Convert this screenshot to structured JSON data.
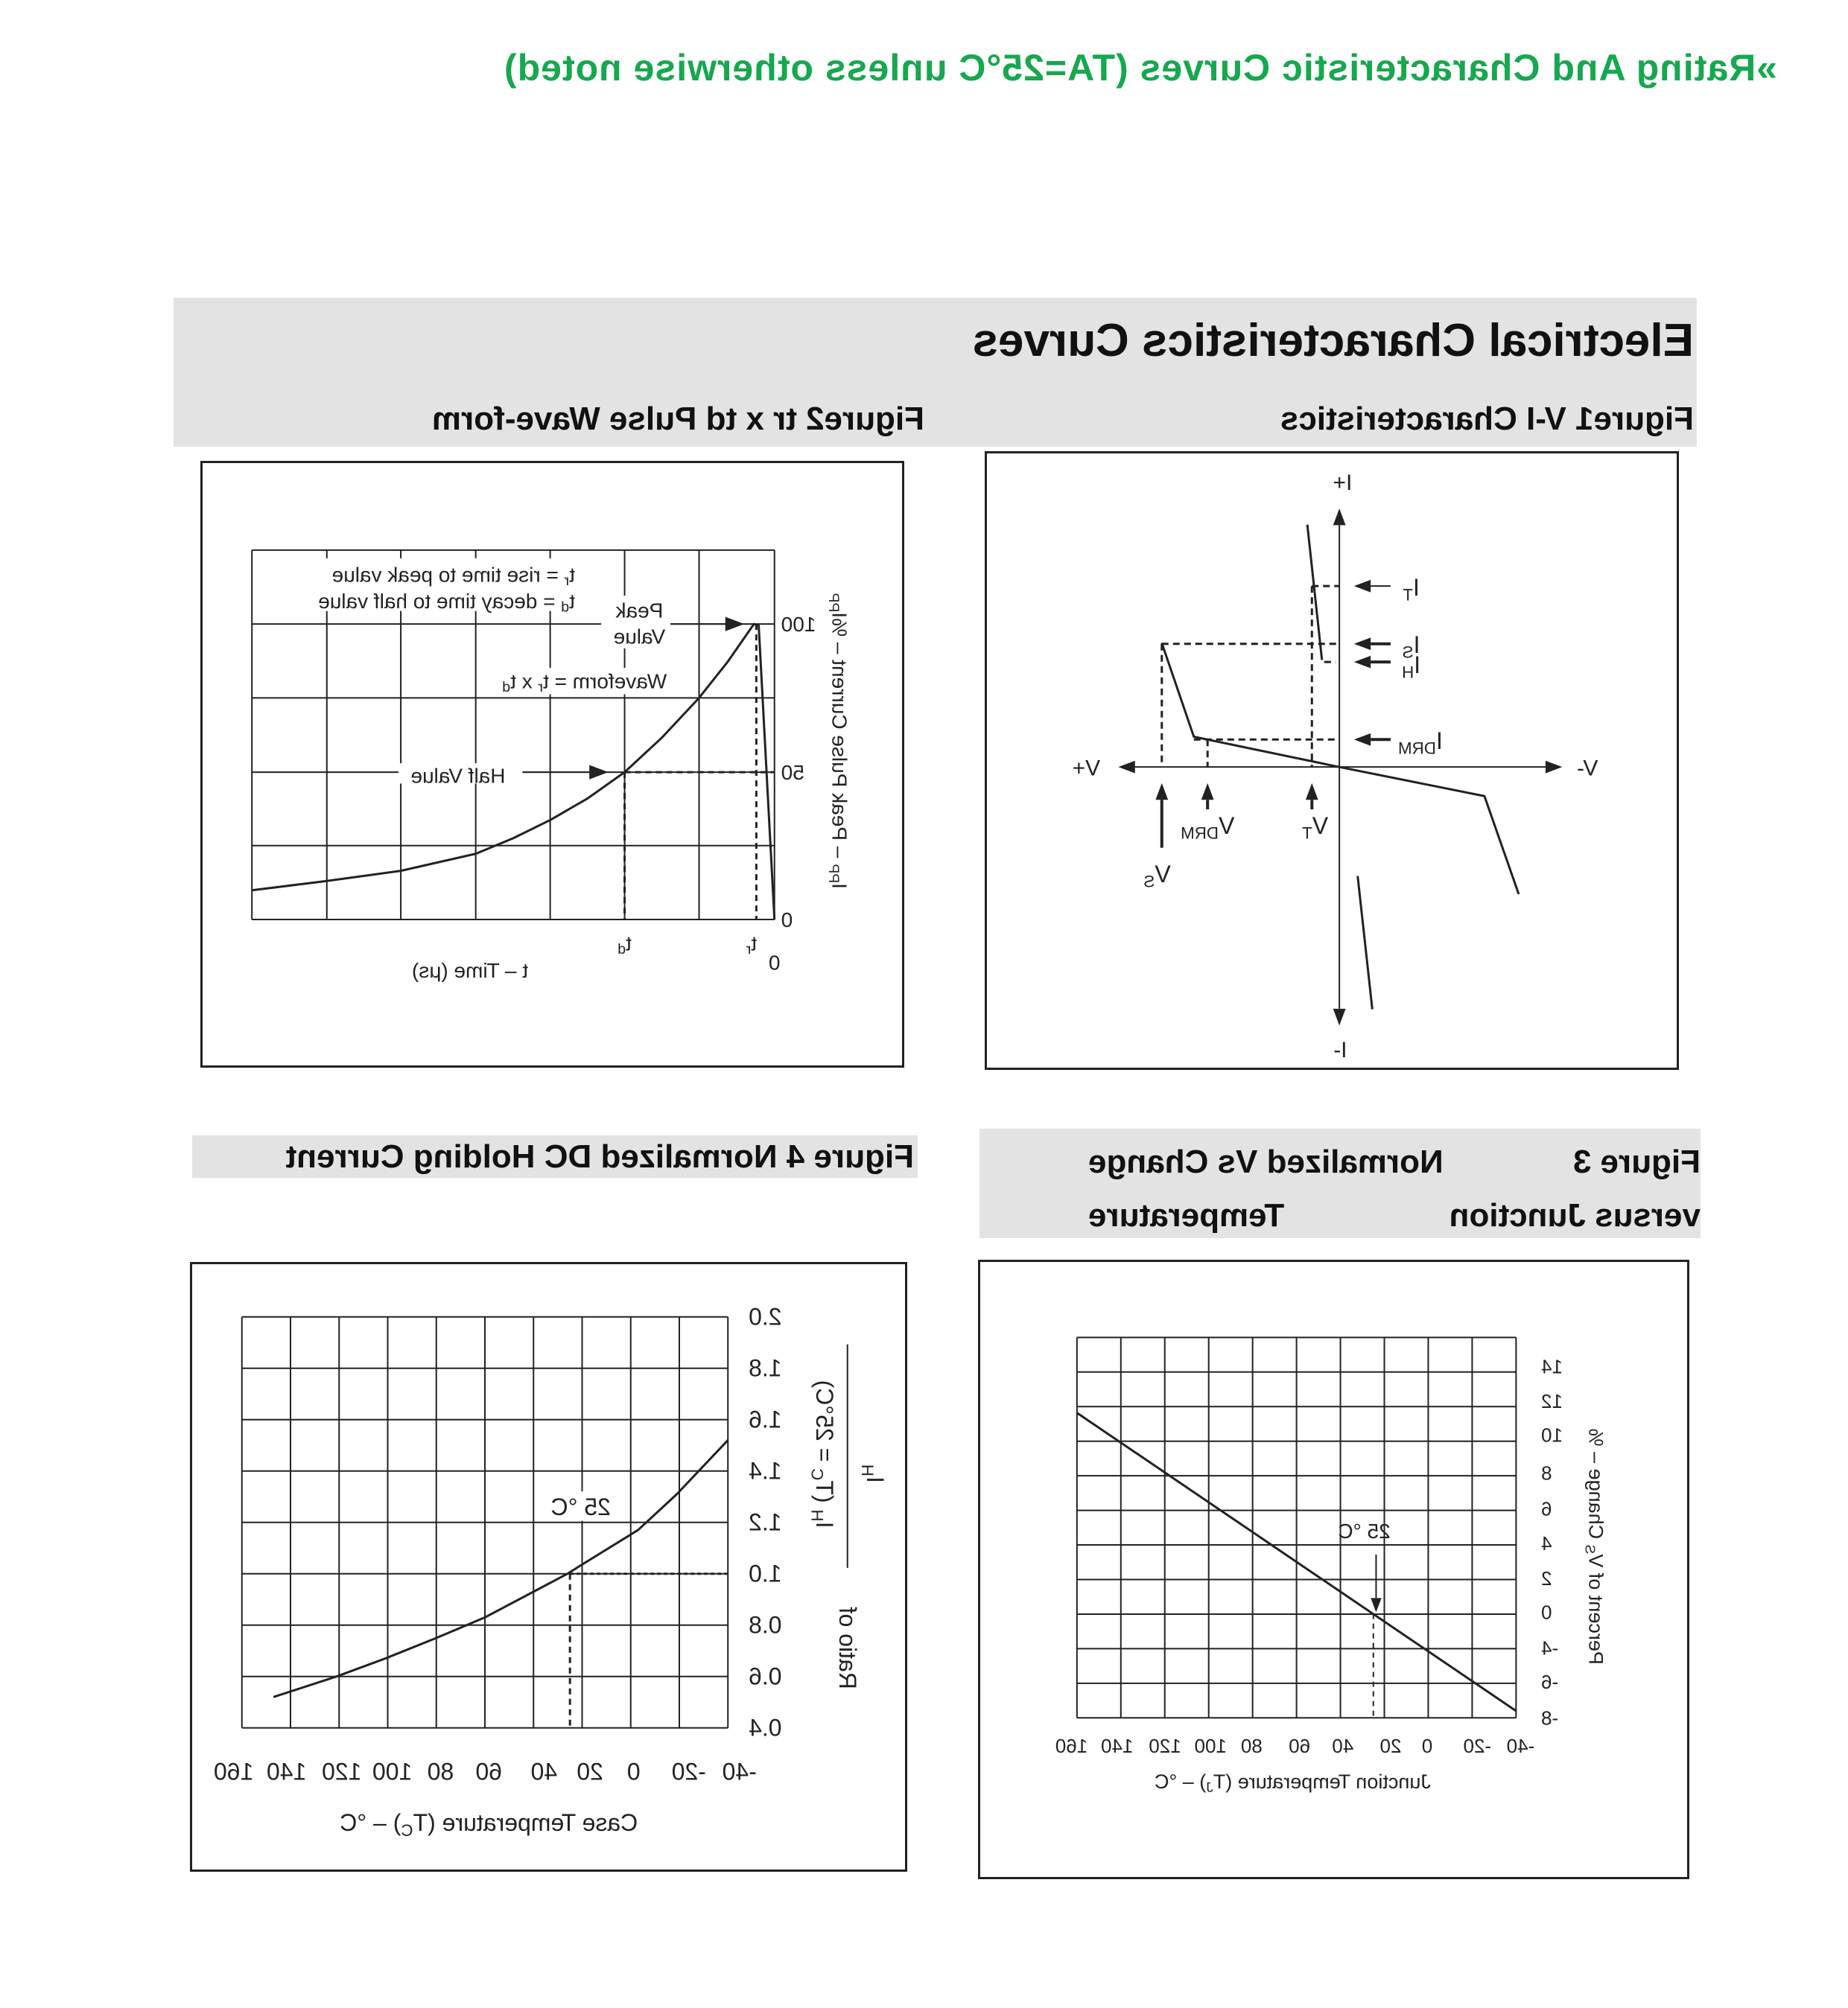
{
  "page": {
    "title": "»Rating And Characteristic Curves (TA=25°C unless otherwise noted)",
    "heading": "Electrical Characteristics Curves",
    "title_color": "#16a84e",
    "band_color": "#e3e3e3"
  },
  "figures": {
    "fig1": {
      "label": "Figure1 V-I Characteristics"
    },
    "fig2": {
      "label": "Figure2 tr x td Pulse Wave-form"
    },
    "fig3": {
      "line1": [
        "Figure 3",
        "Normalized Vs Change"
      ],
      "line2": [
        "versus Junction",
        "Temperature"
      ]
    },
    "fig4": {
      "label": "Figure 4 Normalized DC Holding Current"
    }
  },
  "chart_data": [
    {
      "id": "fig1",
      "type": "diagram",
      "axis_labels": {
        "i_pos": "I+",
        "i_neg": "I-",
        "v_pos": "V+",
        "v_neg": "V-"
      },
      "current_labels": [
        {
          "main": "I",
          "sub": "T"
        },
        {
          "main": "I",
          "sub": "S"
        },
        {
          "main": "I",
          "sub": "H"
        },
        {
          "main": "I",
          "sub": "DRM"
        }
      ],
      "voltage_labels": [
        {
          "main": "V",
          "sub": "S"
        },
        {
          "main": "V",
          "sub": "DRM"
        },
        {
          "main": "V",
          "sub": "T"
        }
      ]
    },
    {
      "id": "fig2",
      "type": "line",
      "ylabel": {
        "main": "I",
        "sub": "PP",
        "tail": " – Peak Pulse Current – %I",
        "sub2": "PP"
      },
      "xlabel": "t – Time (μs)",
      "yticks": [
        "0",
        "50",
        "100"
      ],
      "xticks": {
        "origin": "0",
        "tr": {
          "main": "t",
          "sub": "r"
        },
        "td": {
          "main": "t",
          "sub": "d"
        }
      },
      "yrange": [
        0,
        125
      ],
      "grid": true,
      "key_points": [
        {
          "label": "tr",
          "y": 100
        },
        {
          "label": "td",
          "y": 50
        }
      ],
      "legend": [
        {
          "main": "t",
          "sub": "r",
          "tail": " = rise time to peak value"
        },
        {
          "main": "t",
          "sub": "d",
          "tail": " = decay time to half value"
        }
      ],
      "annotations": {
        "peak_line1": "Peak",
        "peak_line2": "Value",
        "waveform": {
          "main": "Waveform = t",
          "sub": "r",
          "tail": " x t",
          "sub2": "d"
        },
        "half": "Half Value"
      }
    },
    {
      "id": "fig3",
      "type": "line",
      "xlabel": {
        "main": "Junction Temperature (T",
        "sub": "J",
        "tail": ") – °C"
      },
      "ylabel": {
        "main": "Percent of V",
        "sub": "S",
        "tail": " Change – %"
      },
      "xticks": [
        "-40",
        "-20",
        "0",
        "20",
        "40",
        "60",
        "80",
        "100",
        "120",
        "140",
        "160"
      ],
      "yticks": [
        "14",
        "12",
        "10",
        "8",
        "6",
        "4",
        "2",
        "0",
        "-4",
        "-6",
        "-8"
      ],
      "xlim": [
        -40,
        160
      ],
      "ylim": [
        -6,
        16
      ],
      "grid": true,
      "series": [
        {
          "points": [
            [
              -40,
              -5.6
            ],
            [
              160,
              11.6
            ]
          ]
        }
      ],
      "marker": {
        "x": 25,
        "y": 0,
        "label": "25 °C"
      }
    },
    {
      "id": "fig4",
      "type": "line",
      "xlabel": {
        "main": "Case Temperature (T",
        "sub": "C",
        "tail": ") – °C"
      },
      "ylabel": {
        "prefix": "Ratio of",
        "numerator": {
          "main": "I",
          "sub": "H"
        },
        "denominator": {
          "main": "I",
          "sub": "H",
          "tail": " (T",
          "sub2": "C",
          "tail2": " = 25°C)"
        }
      },
      "xticks": [
        "-40",
        "-20",
        "0",
        "20",
        "40",
        "60",
        "80",
        "100",
        "120",
        "140",
        "160"
      ],
      "yticks": [
        "0.4",
        "0.6",
        "0.8",
        "1.0",
        "1.2",
        "1.4",
        "1.6",
        "1.8",
        "2.0"
      ],
      "xlim": [
        -40,
        160
      ],
      "ylim": [
        0.4,
        2.0
      ],
      "grid": true,
      "series": [
        {
          "points": [
            [
              -40,
              1.52
            ],
            [
              -19,
              1.31
            ],
            [
              -3,
              1.17
            ],
            [
              21,
              1.03
            ],
            [
              26,
              1.0
            ],
            [
              40,
              0.93
            ],
            [
              60,
              0.83
            ],
            [
              80,
              0.75
            ],
            [
              101,
              0.67
            ],
            [
              121,
              0.6
            ],
            [
              147,
              0.52
            ]
          ]
        }
      ],
      "marker": {
        "x": 25,
        "y": 1.0,
        "label": "25 °C"
      }
    }
  ]
}
